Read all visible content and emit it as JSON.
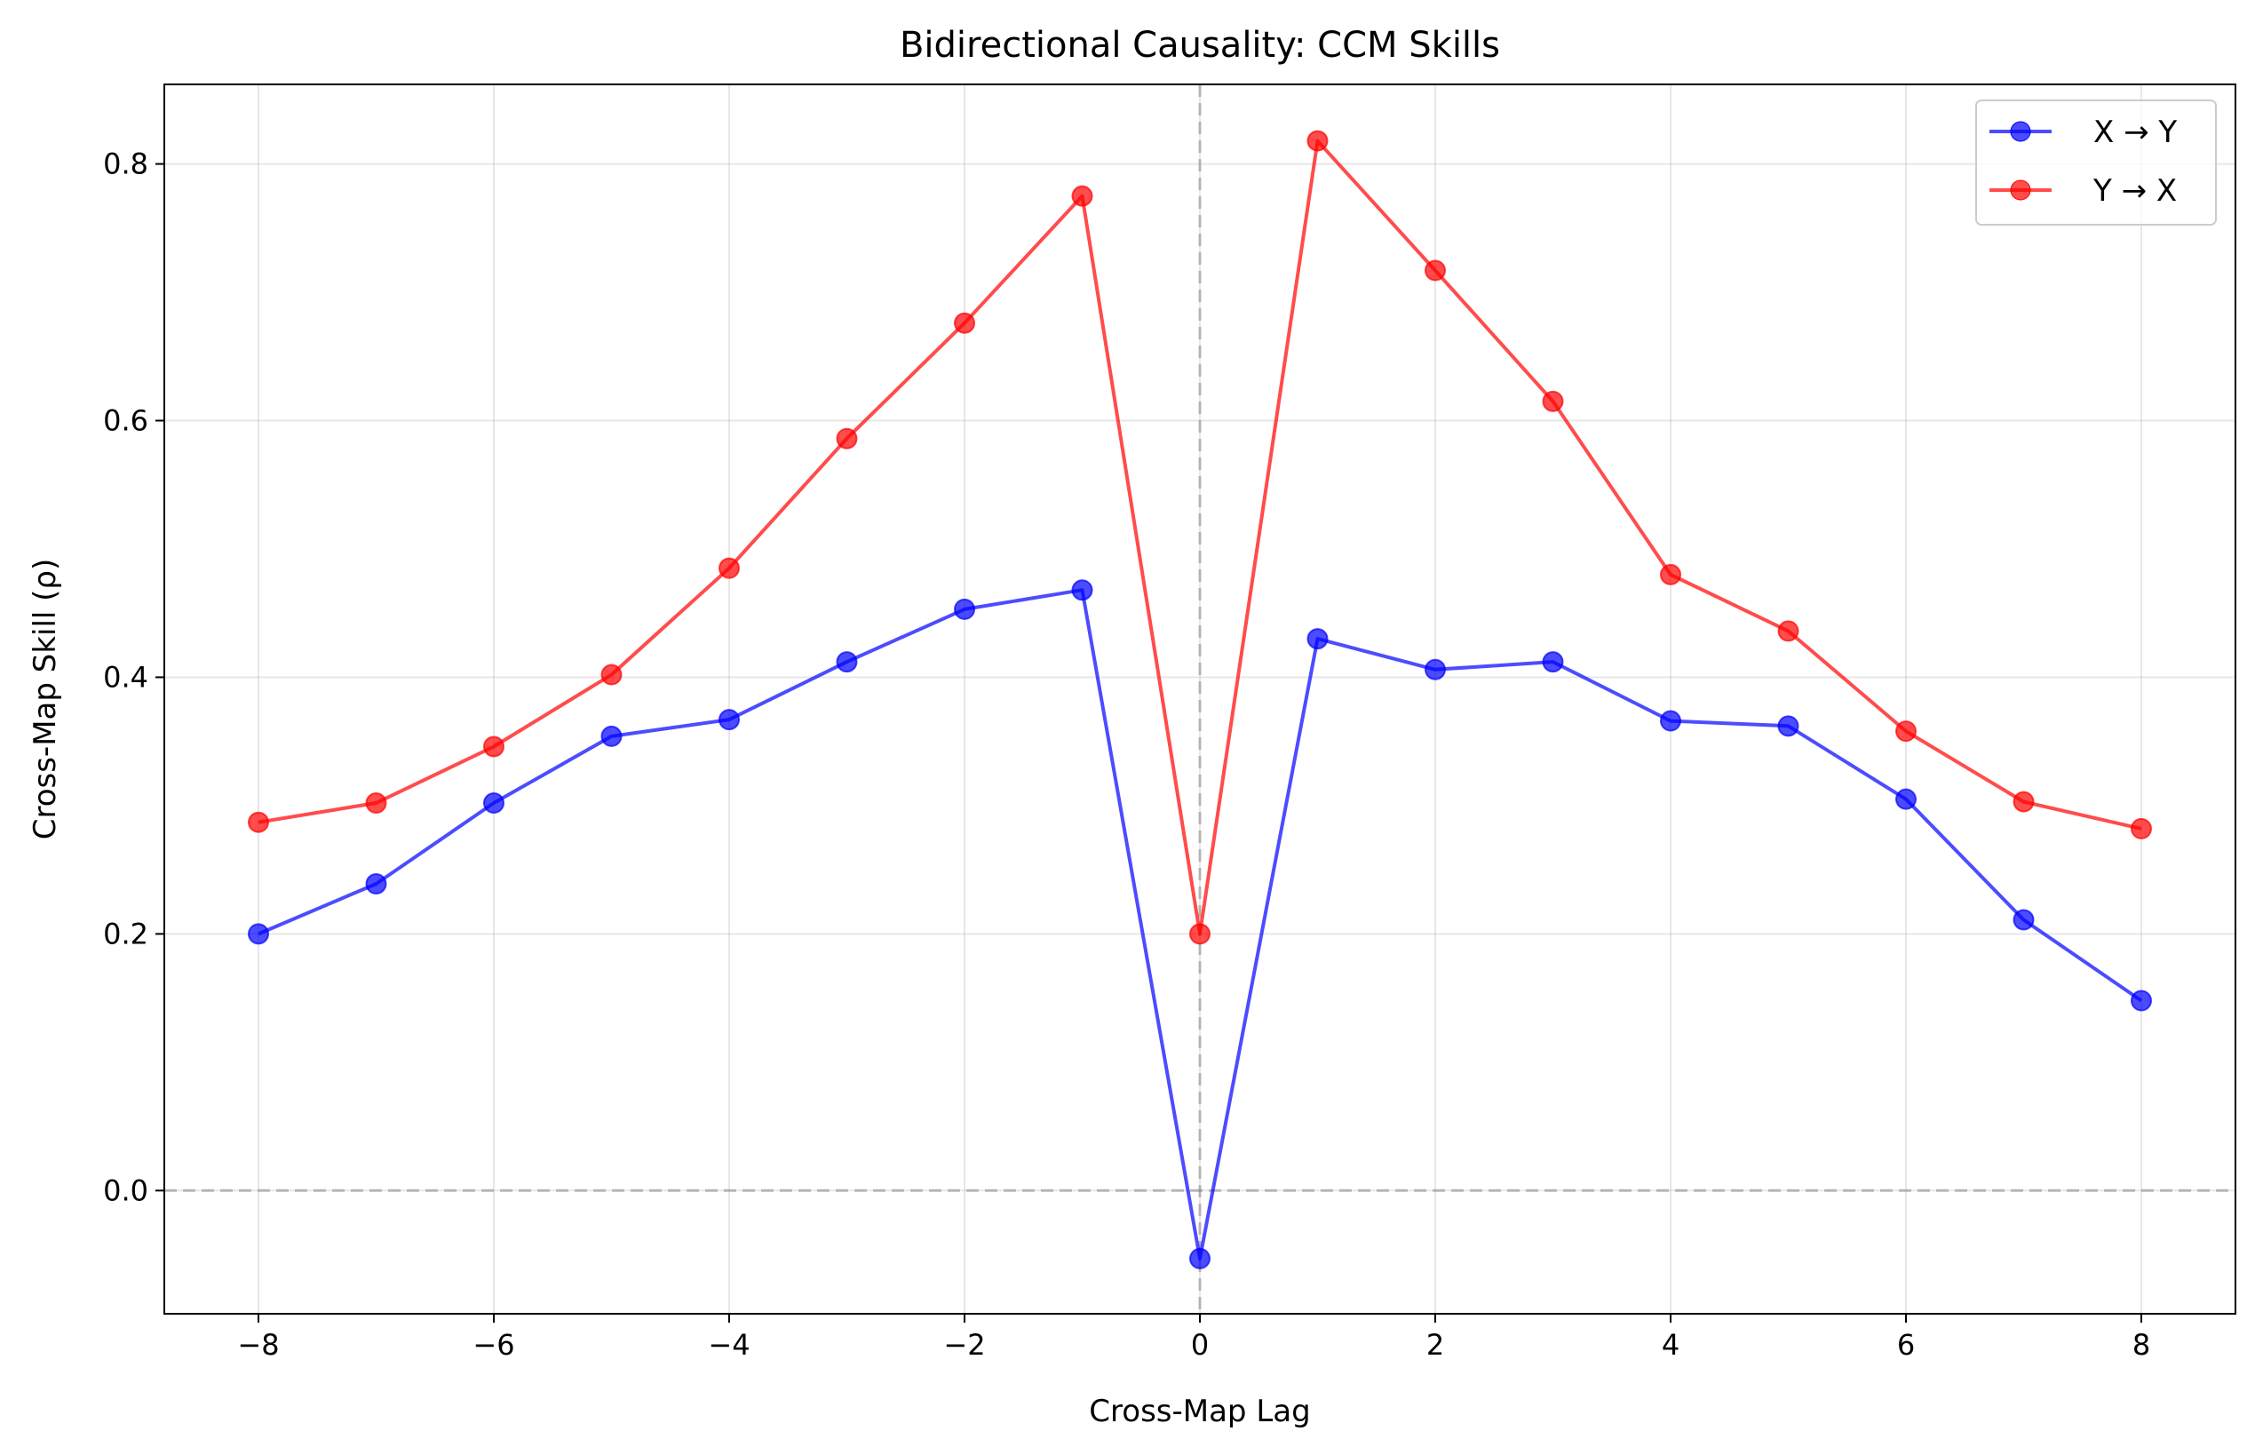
{
  "chart_data": {
    "type": "line",
    "title": "Bidirectional Causality: CCM Skills",
    "xlabel": "Cross-Map Lag",
    "ylabel": "Cross-Map Skill (ρ)",
    "x": [
      -8,
      -7,
      -6,
      -5,
      -4,
      -3,
      -2,
      -1,
      0,
      1,
      2,
      3,
      4,
      5,
      6,
      7,
      8
    ],
    "xlim": [
      -8.8,
      8.8
    ],
    "ylim": [
      -0.096,
      0.862
    ],
    "xticks": [
      -8,
      -6,
      -4,
      -2,
      0,
      2,
      4,
      6,
      8
    ],
    "xtick_labels": [
      "−8",
      "−6",
      "−4",
      "−2",
      "0",
      "2",
      "4",
      "6",
      "8"
    ],
    "yticks": [
      0.0,
      0.2,
      0.4,
      0.6,
      0.8
    ],
    "ytick_labels": [
      "0.0",
      "0.2",
      "0.4",
      "0.6",
      "0.8"
    ],
    "grid": true,
    "reference_lines": {
      "x": 0,
      "y": 0
    },
    "legend_position": "top-right",
    "series": [
      {
        "name": "X → Y",
        "color": "#0000ff",
        "values": [
          0.2,
          0.239,
          0.302,
          0.354,
          0.367,
          0.412,
          0.453,
          0.468,
          -0.053,
          0.43,
          0.406,
          0.412,
          0.366,
          0.362,
          0.305,
          0.211,
          0.148
        ]
      },
      {
        "name": "Y → X",
        "color": "#ff0000",
        "values": [
          0.287,
          0.302,
          0.346,
          0.402,
          0.485,
          0.586,
          0.676,
          0.775,
          0.2,
          0.818,
          0.717,
          0.615,
          0.48,
          0.436,
          0.358,
          0.303,
          0.282
        ]
      }
    ]
  }
}
